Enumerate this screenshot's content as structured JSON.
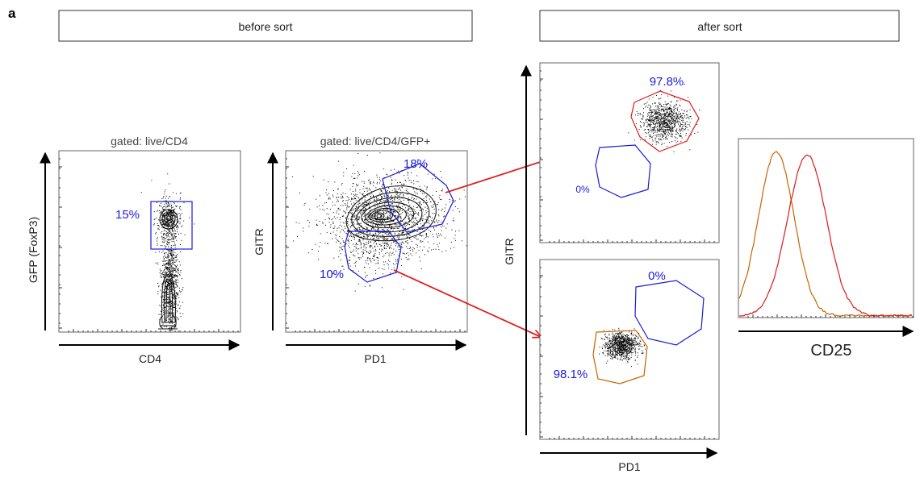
{
  "panel_letter": "a",
  "headers": {
    "before": "before sort",
    "after": "after sort"
  },
  "plot1": {
    "title": "gated: live/CD4",
    "xlabel": "CD4",
    "ylabel": "GFP (FoxP3)",
    "gate_pct": "15%"
  },
  "plot2": {
    "title": "gated: live/CD4/GFP+",
    "xlabel": "PD1",
    "ylabel": "GITR",
    "gate_high_pct": "18%",
    "gate_low_pct": "10%"
  },
  "after": {
    "ylabel": "GITR",
    "xlabel": "PD1",
    "top": {
      "gate_high_pct": "97.8%",
      "gate_low_pct": "0%"
    },
    "bottom": {
      "gate_high_pct": "0%",
      "gate_low_pct": "98.1%"
    }
  },
  "histogram": {
    "xlabel": "CD25"
  },
  "colors": {
    "gate": "#1a1adc",
    "arrow": "#e02020",
    "high": "#e01818",
    "low": "#c86400",
    "axis": "#000000",
    "frame": "#555555"
  }
}
